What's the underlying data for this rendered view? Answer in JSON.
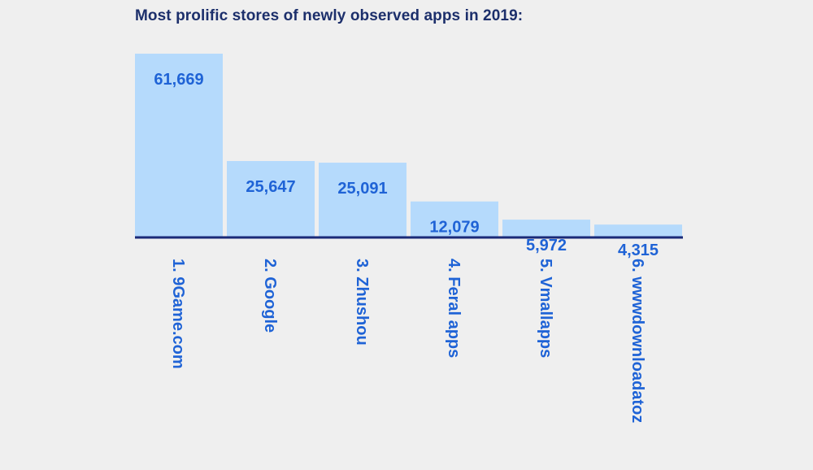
{
  "chart_data": {
    "type": "bar",
    "title": "Most prolific stores of newly observed apps in 2019:",
    "categories": [
      "1. 9Game.com",
      "2. Google",
      "3. Zhushou",
      "4. Feral apps",
      "5. Vmallapps",
      "6. wwwdownloadatoz"
    ],
    "values": [
      61669,
      25647,
      25091,
      12079,
      5972,
      4315
    ],
    "value_labels": [
      "61,669",
      "25,647",
      "25,091",
      "12,079",
      "5,972",
      "4,315"
    ],
    "ylim": [
      0,
      61669
    ],
    "grid": false,
    "legend": "none",
    "bar_color": "#b5dafc",
    "label_color": "#1f63d6",
    "title_color": "#1c2f6b",
    "baseline_color": "#1a2a78"
  }
}
